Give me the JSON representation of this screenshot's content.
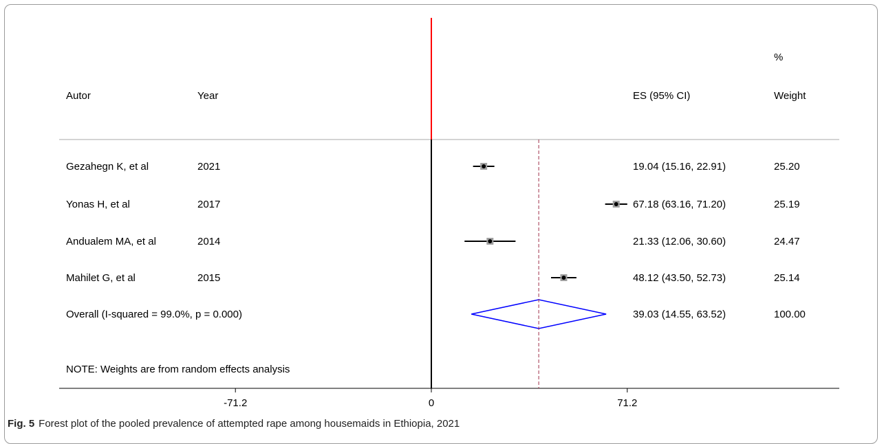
{
  "chart_data": {
    "type": "forest",
    "headers": {
      "author": "Autor",
      "year": "Year",
      "es": "ES (95% CI)",
      "weight_top": "%",
      "weight_bottom": "Weight"
    },
    "studies": [
      {
        "author": "Gezahegn K, et al",
        "year": "2021",
        "es": 19.04,
        "lo": 15.16,
        "hi": 22.91,
        "ci_label": "19.04 (15.16, 22.91)",
        "weight": "25.20"
      },
      {
        "author": "Yonas H, et al",
        "year": "2017",
        "es": 67.18,
        "lo": 63.16,
        "hi": 71.2,
        "ci_label": "67.18 (63.16, 71.20)",
        "weight": "25.19"
      },
      {
        "author": "Andualem MA, et al",
        "year": "2014",
        "es": 21.33,
        "lo": 12.06,
        "hi": 30.6,
        "ci_label": "21.33 (12.06, 30.60)",
        "weight": "24.47"
      },
      {
        "author": "Mahilet G, et al",
        "year": "2015",
        "es": 48.12,
        "lo": 43.5,
        "hi": 52.73,
        "ci_label": "48.12 (43.50, 52.73)",
        "weight": "25.14"
      }
    ],
    "overall": {
      "label": "Overall  (I-squared = 99.0%, p = 0.000)",
      "es": 39.03,
      "lo": 14.55,
      "hi": 63.52,
      "ci_label": "39.03 (14.55, 63.52)",
      "weight": "100.00"
    },
    "note": "NOTE: Weights are from random effects analysis",
    "x_ticks": [
      {
        "value": -71.2,
        "label": "-71.2"
      },
      {
        "value": 0,
        "label": "0"
      },
      {
        "value": 71.2,
        "label": "71.2"
      }
    ],
    "null_line_value": 0,
    "colors": {
      "null_line": "#ff0000",
      "overall_diamond": "#0000ff",
      "overall_line": "#a0304a",
      "ci_line": "#000000",
      "weight_box": "#a0a0a0"
    }
  },
  "caption": {
    "fig_label": "Fig. 5",
    "text": "Forest plot of the pooled prevalence of attempted rape among housemaids in Ethiopia, 2021"
  }
}
